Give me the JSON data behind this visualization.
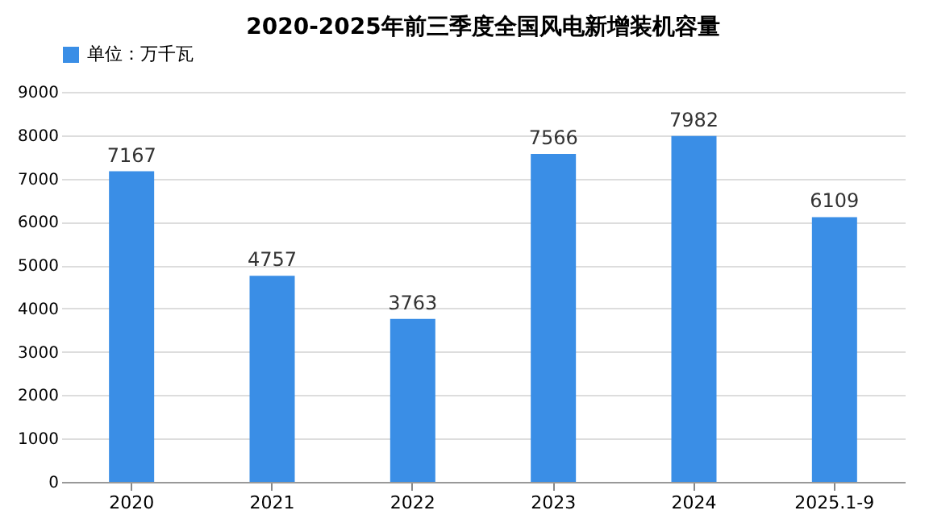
{
  "chart_data": {
    "type": "bar",
    "title": "2020-2025年前三季度全国风电新增装机容量",
    "categories": [
      "2020",
      "2021",
      "2022",
      "2023",
      "2024",
      "2025.1-9"
    ],
    "series": [
      {
        "name": "单位：万千瓦",
        "color": "#3a8ee6",
        "values": [
          7167,
          4757,
          3763,
          7566,
          7982,
          6109
        ]
      }
    ],
    "ylim": [
      0,
      9000
    ],
    "yticks": [
      0,
      1000,
      2000,
      3000,
      4000,
      5000,
      6000,
      7000,
      8000,
      9000
    ],
    "grid": "y",
    "legend": "top",
    "data_labels": true
  }
}
